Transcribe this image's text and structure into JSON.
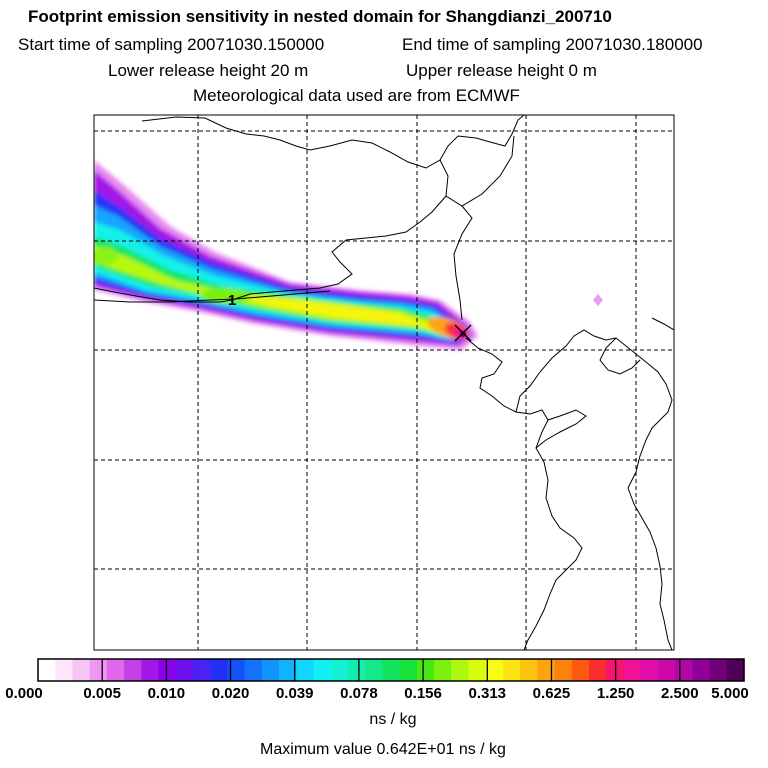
{
  "header": {
    "title": "Footprint emission sensitivity in nested domain for Shangdianzi_200710",
    "start_label": "Start time of sampling 20071030.150000",
    "end_label": "End time of sampling 20071030.180000",
    "lower_label": "Lower release height   20 m",
    "upper_label": "Upper release height    0 m",
    "met_label": "Meteorological data used are from ECMWF"
  },
  "map": {
    "receptor_marker": "x-icon",
    "track_label": "1"
  },
  "colorbar": {
    "ticks": [
      "0.000",
      "0.005",
      "0.010",
      "0.020",
      "0.039",
      "0.078",
      "0.156",
      "0.313",
      "0.625",
      "1.250",
      "2.500",
      "5.000"
    ],
    "colors": [
      "#ffffff",
      "#fde6fb",
      "#f6c6f6",
      "#ee96f0",
      "#df68ea",
      "#c540e6",
      "#a316e6",
      "#8a00e8",
      "#6c10f0",
      "#4b22f6",
      "#2230f8",
      "#1252fa",
      "#1272fc",
      "#1294fd",
      "#12b2fd",
      "#12d6fd",
      "#12f0f6",
      "#12f2d2",
      "#12eeb0",
      "#12ea8a",
      "#12e460",
      "#16e23a",
      "#46e812",
      "#7ef010",
      "#aef810",
      "#d8fc10",
      "#f8fc10",
      "#fce412",
      "#fcc410",
      "#fca410",
      "#fc8210",
      "#fc5a12",
      "#fa2e2c",
      "#fa1270",
      "#f21098",
      "#e20ca8",
      "#cc08a8",
      "#b006a4",
      "#900098",
      "#700078",
      "#500058"
    ],
    "unit": "ns / kg",
    "max_value": "Maximum value  0.642E+01 ns / kg"
  }
}
